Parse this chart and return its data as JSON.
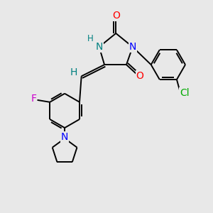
{
  "background_color": "#e8e8e8",
  "bond_color": "#000000",
  "atom_colors": {
    "O": "#ff0000",
    "N": "#0000ff",
    "N_NH": "#008080",
    "F": "#cc00cc",
    "Cl": "#00aa00",
    "H": "#008080",
    "C": "#000000"
  },
  "lw": 1.4,
  "fs": 10,
  "fs_small": 8.5
}
